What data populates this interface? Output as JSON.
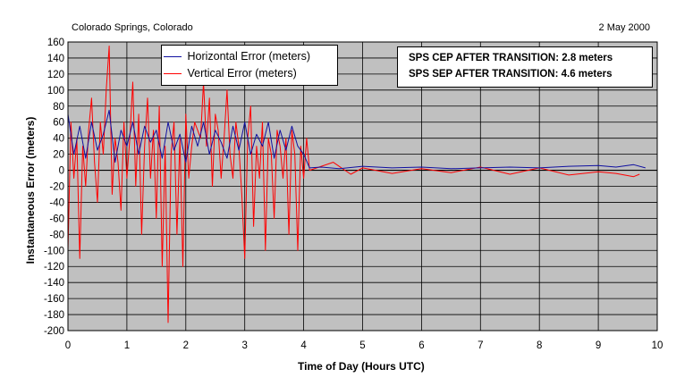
{
  "header": {
    "location": "Colorado Springs, Colorado",
    "date": "2 May 2000"
  },
  "annotation": {
    "line1": "SPS CEP AFTER TRANSITION:  2.8 meters",
    "line2": "SPS SEP AFTER TRANSITION:  4.6 meters"
  },
  "colors": {
    "plot_background": "#c0c0c0",
    "horizontal": "#1010a0",
    "vertical": "#ff0000",
    "grid": "#000000"
  },
  "chart_data": {
    "type": "line",
    "title": "",
    "xlabel": "Time of Day (Hours UTC)",
    "ylabel": "Instantaneous Error (meters)",
    "xlim": [
      0,
      10
    ],
    "ylim": [
      -200,
      160
    ],
    "xticks": [
      0,
      1,
      2,
      3,
      4,
      5,
      6,
      7,
      8,
      9,
      10
    ],
    "yticks": [
      160,
      140,
      120,
      100,
      80,
      60,
      40,
      20,
      0,
      -20,
      -40,
      -60,
      -80,
      -100,
      -120,
      -140,
      -160,
      -180,
      -200
    ],
    "grid": true,
    "legend": "top-left",
    "series": [
      {
        "name": "Horizontal Error (meters)",
        "color": "#1010a0",
        "x": [
          0,
          0.1,
          0.2,
          0.3,
          0.4,
          0.5,
          0.6,
          0.7,
          0.8,
          0.9,
          1.0,
          1.1,
          1.2,
          1.3,
          1.4,
          1.5,
          1.6,
          1.7,
          1.8,
          1.9,
          2.0,
          2.1,
          2.2,
          2.3,
          2.4,
          2.5,
          2.6,
          2.7,
          2.8,
          2.9,
          3.0,
          3.1,
          3.2,
          3.3,
          3.4,
          3.5,
          3.6,
          3.7,
          3.8,
          3.9,
          4.0,
          4.1,
          4.3,
          4.6,
          5.0,
          5.5,
          6.0,
          6.5,
          7.0,
          7.5,
          8.0,
          8.5,
          9.0,
          9.3,
          9.6,
          9.8
        ],
        "y": [
          70,
          20,
          55,
          15,
          60,
          25,
          45,
          75,
          10,
          50,
          30,
          60,
          20,
          55,
          35,
          50,
          15,
          60,
          25,
          45,
          10,
          55,
          30,
          60,
          20,
          50,
          35,
          15,
          55,
          25,
          60,
          20,
          45,
          30,
          60,
          15,
          50,
          25,
          55,
          30,
          20,
          3,
          4,
          2,
          5,
          3,
          4,
          2,
          3,
          4,
          3,
          5,
          6,
          4,
          7,
          3
        ]
      },
      {
        "name": "Vertical Error (meters)",
        "color": "#ff0000",
        "x": [
          0,
          0.05,
          0.1,
          0.15,
          0.2,
          0.25,
          0.3,
          0.35,
          0.4,
          0.45,
          0.5,
          0.55,
          0.6,
          0.65,
          0.7,
          0.75,
          0.8,
          0.85,
          0.9,
          0.95,
          1.0,
          1.05,
          1.1,
          1.15,
          1.2,
          1.25,
          1.3,
          1.35,
          1.4,
          1.45,
          1.5,
          1.55,
          1.6,
          1.65,
          1.7,
          1.75,
          1.8,
          1.85,
          1.9,
          1.95,
          2.0,
          2.05,
          2.1,
          2.15,
          2.2,
          2.25,
          2.3,
          2.35,
          2.4,
          2.45,
          2.5,
          2.55,
          2.6,
          2.65,
          2.7,
          2.75,
          2.8,
          2.85,
          2.9,
          2.95,
          3.0,
          3.05,
          3.1,
          3.15,
          3.2,
          3.25,
          3.3,
          3.35,
          3.4,
          3.45,
          3.5,
          3.55,
          3.6,
          3.65,
          3.7,
          3.75,
          3.8,
          3.85,
          3.9,
          3.95,
          4.0,
          4.05,
          4.1,
          4.3,
          4.5,
          4.8,
          5.0,
          5.5,
          6.0,
          6.5,
          7.0,
          7.5,
          8.0,
          8.5,
          9.0,
          9.3,
          9.6,
          9.7
        ],
        "y": [
          -100,
          60,
          -10,
          40,
          -110,
          30,
          -20,
          50,
          90,
          10,
          -40,
          60,
          20,
          100,
          155,
          -30,
          40,
          10,
          -50,
          60,
          -10,
          40,
          110,
          -20,
          70,
          -80,
          30,
          90,
          -10,
          50,
          -60,
          80,
          -120,
          30,
          -190,
          20,
          60,
          -80,
          40,
          -120,
          70,
          -10,
          30,
          60,
          50,
          40,
          110,
          30,
          90,
          -20,
          70,
          50,
          -10,
          40,
          100,
          20,
          -10,
          60,
          30,
          -30,
          -110,
          40,
          80,
          -70,
          30,
          -10,
          60,
          -100,
          40,
          20,
          -60,
          50,
          30,
          -10,
          40,
          -80,
          50,
          20,
          -100,
          30,
          -10,
          40,
          0,
          5,
          10,
          -5,
          3,
          -4,
          2,
          -3,
          4,
          -5,
          3,
          -6,
          -2,
          -4,
          -8,
          -5
        ]
      }
    ]
  }
}
